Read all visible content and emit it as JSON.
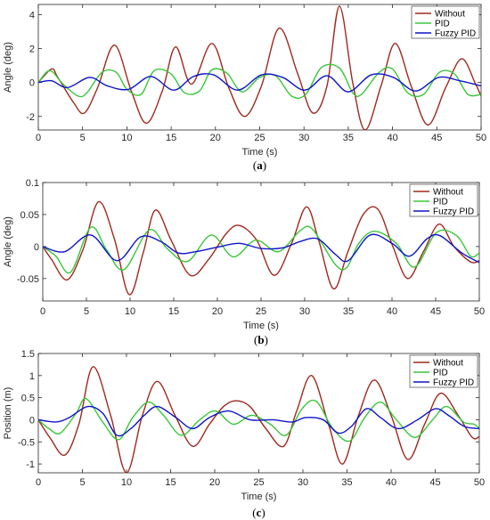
{
  "colors": {
    "Without": "#a0281c",
    "PID": "#38c738",
    "Fuzzy PID": "#0d15c9"
  },
  "chart_data": [
    {
      "type": "line",
      "caption_letter": "a",
      "xlabel": "Time (s)",
      "ylabel": "Angle (deg)",
      "xlim": [
        0,
        50
      ],
      "ylim": [
        -2.8,
        4.6
      ],
      "xticks": [
        0,
        5,
        10,
        15,
        20,
        25,
        30,
        35,
        40,
        45,
        50
      ],
      "yticks": [
        -2,
        0,
        2,
        4
      ],
      "ytick_labels": [
        "-2",
        "0",
        "2",
        "4"
      ],
      "legend_position": "top-right",
      "series": [
        {
          "name": "Without",
          "x": [
            0,
            1.5,
            2.2,
            4,
            5.2,
            6.7,
            8.6,
            10.5,
            12.2,
            14,
            15.5,
            17.3,
            19.6,
            21.5,
            23.3,
            25.2,
            27.2,
            29.3,
            31,
            32.6,
            34,
            35.5,
            36.9,
            38.7,
            40.3,
            42.1,
            44,
            46,
            47.8,
            49.3,
            50
          ],
          "y": [
            0,
            0.8,
            0.3,
            -1.2,
            -1.8,
            -0.3,
            2.2,
            -0.5,
            -2.4,
            -0.5,
            2.1,
            -0.1,
            2.3,
            -0.3,
            -2.0,
            -0.2,
            3.2,
            0.5,
            -1.8,
            -0.2,
            4.5,
            0.0,
            -2.8,
            -0.2,
            2.3,
            -0.2,
            -2.5,
            -0.3,
            1.4,
            0.0,
            -0.8
          ]
        },
        {
          "name": "PID",
          "x": [
            0,
            1.3,
            2.8,
            4.5,
            5.5,
            7.2,
            8.8,
            10,
            11.6,
            13.1,
            15,
            16.5,
            18.2,
            19.6,
            21.3,
            23,
            25,
            26.8,
            28.6,
            30.2,
            32,
            34,
            35.5,
            36.5,
            38.5,
            40,
            41.7,
            43.5,
            45.3,
            47,
            48.5,
            50
          ],
          "y": [
            0,
            0.7,
            -0.1,
            -0.8,
            -0.6,
            0.6,
            0.6,
            -0.4,
            -0.7,
            0.7,
            0.5,
            -0.6,
            -0.5,
            0.75,
            0.55,
            -0.55,
            0.3,
            0.4,
            -0.8,
            -0.7,
            0.9,
            0.85,
            -0.6,
            -0.7,
            0.6,
            0.8,
            -0.6,
            -0.7,
            0.6,
            0.5,
            -0.7,
            -0.7
          ]
        },
        {
          "name": "Fuzzy PID",
          "x": [
            0,
            1.5,
            3.3,
            5.8,
            7.8,
            10.2,
            12.7,
            15.3,
            17.5,
            19.8,
            22.5,
            25.2,
            27.6,
            30.1,
            32.6,
            35,
            37.6,
            40.1,
            42.6,
            45.2,
            47.6,
            50
          ],
          "y": [
            0,
            0.1,
            -0.3,
            0.3,
            -0.2,
            -0.4,
            0.35,
            -0.45,
            0.35,
            0.45,
            -0.45,
            0.45,
            0.3,
            -0.45,
            0.4,
            -0.55,
            0.45,
            0.3,
            -0.5,
            0.3,
            0.1,
            -0.2
          ]
        }
      ]
    },
    {
      "type": "line",
      "caption_letter": "b",
      "xlabel": "Time (s)",
      "ylabel": "Angle (deg)",
      "xlim": [
        0,
        50
      ],
      "ylim": [
        -0.085,
        0.1
      ],
      "xticks": [
        0,
        5,
        10,
        15,
        20,
        25,
        30,
        35,
        40,
        45,
        50
      ],
      "yticks": [
        -0.05,
        0,
        0.05,
        0.1
      ],
      "ytick_labels": [
        "-0.05",
        "0",
        "0.05",
        "0.1"
      ],
      "legend_position": "top-right",
      "series": [
        {
          "name": "Without",
          "x": [
            0,
            1,
            2.8,
            4.6,
            6.4,
            8.2,
            9.9,
            11.5,
            12.9,
            14.7,
            16.9,
            19,
            21,
            22.5,
            24.5,
            26.5,
            28.5,
            30.2,
            31.6,
            33.3,
            34.9,
            36.7,
            38.4,
            40.1,
            41.8,
            43.6,
            45.4,
            47.1,
            49,
            50
          ],
          "y": [
            0,
            -0.02,
            -0.052,
            -0.005,
            0.07,
            0.012,
            -0.075,
            -0.01,
            0.057,
            0.01,
            -0.045,
            -0.02,
            0.02,
            0.033,
            0.01,
            -0.045,
            0.005,
            0.062,
            0.01,
            -0.066,
            -0.01,
            0.05,
            0.058,
            0.0,
            -0.05,
            -0.008,
            0.035,
            0.0,
            -0.024,
            -0.022
          ]
        },
        {
          "name": "PID",
          "x": [
            0,
            1.5,
            3.2,
            5.5,
            7.3,
            9.3,
            12.2,
            14.3,
            16.6,
            19.3,
            21.8,
            24.4,
            27,
            29.5,
            30.9,
            33.5,
            34.8,
            36.2,
            38,
            40.5,
            42.6,
            45.1,
            47.4,
            49,
            50
          ],
          "y": [
            0,
            -0.015,
            -0.04,
            0.03,
            -0.005,
            -0.036,
            0.026,
            -0.004,
            -0.023,
            0.018,
            -0.016,
            0.01,
            -0.008,
            0.025,
            0.027,
            -0.028,
            -0.033,
            0.005,
            0.024,
            0.005,
            -0.032,
            0.022,
            0.017,
            -0.015,
            -0.01
          ]
        },
        {
          "name": "Fuzzy PID",
          "x": [
            0,
            2.5,
            5.5,
            8.5,
            11.2,
            13.5,
            15.5,
            17.5,
            20,
            22.5,
            25,
            27.5,
            29.5,
            31.5,
            33.5,
            35,
            37.5,
            40,
            42,
            44,
            45.5,
            48,
            50
          ],
          "y": [
            0,
            -0.008,
            0.018,
            -0.022,
            0.015,
            0.008,
            -0.01,
            -0.008,
            -0.001,
            0.005,
            -0.003,
            -0.002,
            0.008,
            0.012,
            -0.012,
            -0.022,
            0.018,
            0.005,
            -0.015,
            0.012,
            0.017,
            -0.01,
            -0.025
          ]
        }
      ]
    },
    {
      "type": "line",
      "caption_letter": "c",
      "xlabel": "Time (s)",
      "ylabel": "Position (m)",
      "xlim": [
        0,
        50
      ],
      "ylim": [
        -1.2,
        1.5
      ],
      "xticks": [
        0,
        5,
        10,
        15,
        20,
        25,
        30,
        35,
        40,
        45,
        50
      ],
      "yticks": [
        -1,
        -0.5,
        0,
        0.5,
        1,
        1.5
      ],
      "ytick_labels": [
        "-1",
        "-0.5",
        "0",
        "0.5",
        "1",
        "1.5"
      ],
      "legend_position": "top-right",
      "series": [
        {
          "name": "Without",
          "x": [
            0,
            1.3,
            3,
            4.6,
            6.2,
            8.2,
            10,
            11.8,
            13.5,
            15.5,
            17.5,
            19.4,
            21,
            22.4,
            24,
            25.8,
            27.8,
            29.3,
            31,
            32.9,
            34.5,
            36.3,
            38.1,
            40,
            41.9,
            43.8,
            45.6,
            47.6,
            49.2,
            50
          ],
          "y": [
            0,
            -0.4,
            -0.8,
            -0.1,
            1.2,
            0.1,
            -1.2,
            0.1,
            0.87,
            0.1,
            -0.6,
            -0.1,
            0.3,
            0.43,
            0.3,
            -0.2,
            -0.6,
            0.2,
            1.0,
            -0.1,
            -1.0,
            0.1,
            0.9,
            0.1,
            -0.9,
            -0.1,
            0.6,
            0.1,
            -0.4,
            -0.38
          ]
        },
        {
          "name": "PID",
          "x": [
            0,
            1.2,
            2.5,
            4.3,
            5.4,
            7.3,
            9.1,
            10.7,
            12.5,
            14.2,
            16.2,
            18.3,
            20.1,
            22.1,
            24.2,
            26.3,
            28.1,
            29.9,
            31.5,
            33.4,
            35.3,
            37,
            38.8,
            40.6,
            42.7,
            44.7,
            46.3,
            48.2,
            49.4,
            50
          ],
          "y": [
            0,
            -0.2,
            -0.3,
            0.15,
            0.48,
            -0.05,
            -0.45,
            0.05,
            0.4,
            0.1,
            -0.35,
            0.0,
            0.2,
            -0.1,
            0.1,
            -0.1,
            -0.35,
            0.25,
            0.42,
            -0.2,
            -0.48,
            0.05,
            0.4,
            0.0,
            -0.4,
            0.0,
            0.3,
            -0.05,
            -0.1,
            -0.2
          ]
        },
        {
          "name": "Fuzzy PID",
          "x": [
            0,
            2,
            3.5,
            5.6,
            7.3,
            8.9,
            10.5,
            12,
            13.5,
            15.6,
            17.5,
            19.4,
            21.6,
            24,
            26.6,
            28.8,
            30.3,
            32.3,
            34,
            35.5,
            37.2,
            38.8,
            40.8,
            43,
            45,
            46.5,
            48.3,
            50
          ],
          "y": [
            0,
            -0.05,
            0.05,
            0.3,
            0.15,
            -0.35,
            -0.2,
            0.1,
            0.3,
            0.05,
            -0.2,
            0.05,
            0.2,
            0.0,
            0.0,
            -0.05,
            0.05,
            0.0,
            -0.3,
            -0.15,
            0.25,
            0.05,
            -0.2,
            0.0,
            0.25,
            0.1,
            -0.15,
            -0.2
          ]
        }
      ]
    }
  ]
}
